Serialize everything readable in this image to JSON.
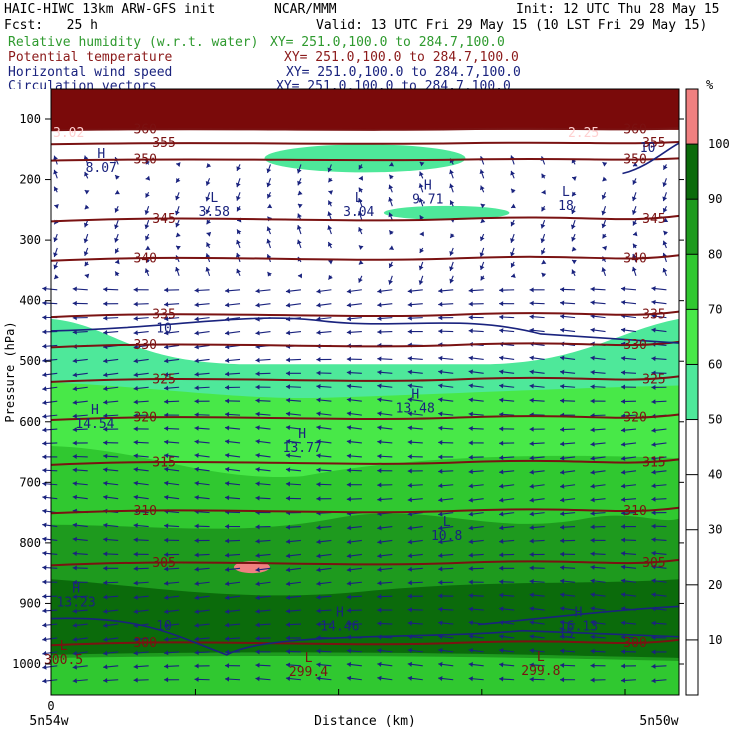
{
  "header": {
    "model": "HAIC-HIWC 13km ARW-GFS init",
    "org": "NCAR/MMM",
    "init": "Init: 12 UTC Thu 28 May 15",
    "fcst": "Fcst:   25 h",
    "valid": "Valid: 13 UTC Fri 29 May 15 (10 LST Fri 29 May 15)",
    "fields": [
      {
        "name": "Relative humidity (w.r.t. water)",
        "xy": "XY= 251.0,100.0 to 284.7,100.0",
        "color": "#2e9a2e"
      },
      {
        "name": "Potential temperature",
        "xy": "XY= 251.0,100.0 to 284.7,100.0",
        "color": "#8b1a1a"
      },
      {
        "name": "Horizontal wind speed",
        "xy": "XY= 251.0,100.0 to 284.7,100.0",
        "color": "#1a237e"
      },
      {
        "name": "Circulation vectors",
        "xy": "XY= 251.0,100.0 to 284.7,100.0",
        "color": "#1a237e"
      }
    ]
  },
  "chart_data": {
    "type": "heatmap",
    "ylabel": "Pressure (hPa)",
    "xlabel": "Distance (km)",
    "x_left_label": "5n54w",
    "x_right_label": "5n50w",
    "x_origin": "0",
    "y_ticks": [
      100,
      200,
      300,
      400,
      500,
      600,
      700,
      800,
      900,
      1000
    ],
    "ylim": [
      1050,
      75
    ],
    "colorbar": {
      "unit": "%",
      "ticks": [
        10,
        20,
        30,
        40,
        50,
        60,
        70,
        80,
        90,
        100
      ],
      "bins": [
        {
          "from": 0,
          "to": 50,
          "color": "#ffffff"
        },
        {
          "from": 50,
          "to": 60,
          "color": "#4ee89a"
        },
        {
          "from": 60,
          "to": 70,
          "color": "#48e848"
        },
        {
          "from": 70,
          "to": 80,
          "color": "#30c830"
        },
        {
          "from": 80,
          "to": 90,
          "color": "#1e9a1e"
        },
        {
          "from": 90,
          "to": 100,
          "color": "#0b6b0b"
        },
        {
          "from": 100,
          "to": 110,
          "color": "#f08080"
        }
      ]
    },
    "theta_contours": [
      {
        "label": "360",
        "p": 117
      },
      {
        "label": "355",
        "p": 140
      },
      {
        "label": "350",
        "p": 167
      },
      {
        "label": "345",
        "p": 265
      },
      {
        "label": "340",
        "p": 330
      },
      {
        "label": "335",
        "p": 423
      },
      {
        "label": "330",
        "p": 473
      },
      {
        "label": "325",
        "p": 530
      },
      {
        "label": "320",
        "p": 593
      },
      {
        "label": "315",
        "p": 667
      },
      {
        "label": "310",
        "p": 747
      },
      {
        "label": "305",
        "p": 833
      },
      {
        "label": "300",
        "p": 965
      }
    ],
    "wind_labels": [
      {
        "label": "10",
        "p": 446
      },
      {
        "label": "10",
        "p": 937
      },
      {
        "label": "15",
        "p": 950
      },
      {
        "label": "10",
        "p": 148
      }
    ],
    "extrema": [
      {
        "kind": "H",
        "value": "8.07",
        "x": 0.08,
        "p": 178
      },
      {
        "kind": "L",
        "value": "3.58",
        "x": 0.26,
        "p": 250
      },
      {
        "kind": "L",
        "value": "3.04",
        "x": 0.49,
        "p": 250
      },
      {
        "kind": "H",
        "value": "9.71",
        "x": 0.6,
        "p": 230
      },
      {
        "kind": "L",
        "value": "18",
        "x": 0.82,
        "p": 240
      },
      {
        "kind": "H",
        "value": "14.54",
        "x": 0.07,
        "p": 600
      },
      {
        "kind": "H",
        "value": "13.77",
        "x": 0.4,
        "p": 640
      },
      {
        "kind": "H",
        "value": "13.48",
        "x": 0.58,
        "p": 575
      },
      {
        "kind": "L",
        "value": "10.8",
        "x": 0.63,
        "p": 785
      },
      {
        "kind": "H",
        "value": "13.23",
        "x": 0.04,
        "p": 895
      },
      {
        "kind": "H",
        "value": "14.46",
        "x": 0.46,
        "p": 935
      },
      {
        "kind": "H",
        "value": "16.13",
        "x": 0.84,
        "p": 935
      },
      {
        "kind": "L",
        "value": "300.5",
        "x": 0.02,
        "p": 990
      },
      {
        "kind": "L",
        "value": "299.4",
        "x": 0.41,
        "p": 1010
      },
      {
        "kind": "L",
        "value": "299.8",
        "x": 0.78,
        "p": 1008
      }
    ],
    "corner_labels": [
      {
        "label": "3.02",
        "x": 0.0,
        "p": 90
      },
      {
        "label": "2.25",
        "x": 0.82,
        "p": 90
      }
    ]
  }
}
